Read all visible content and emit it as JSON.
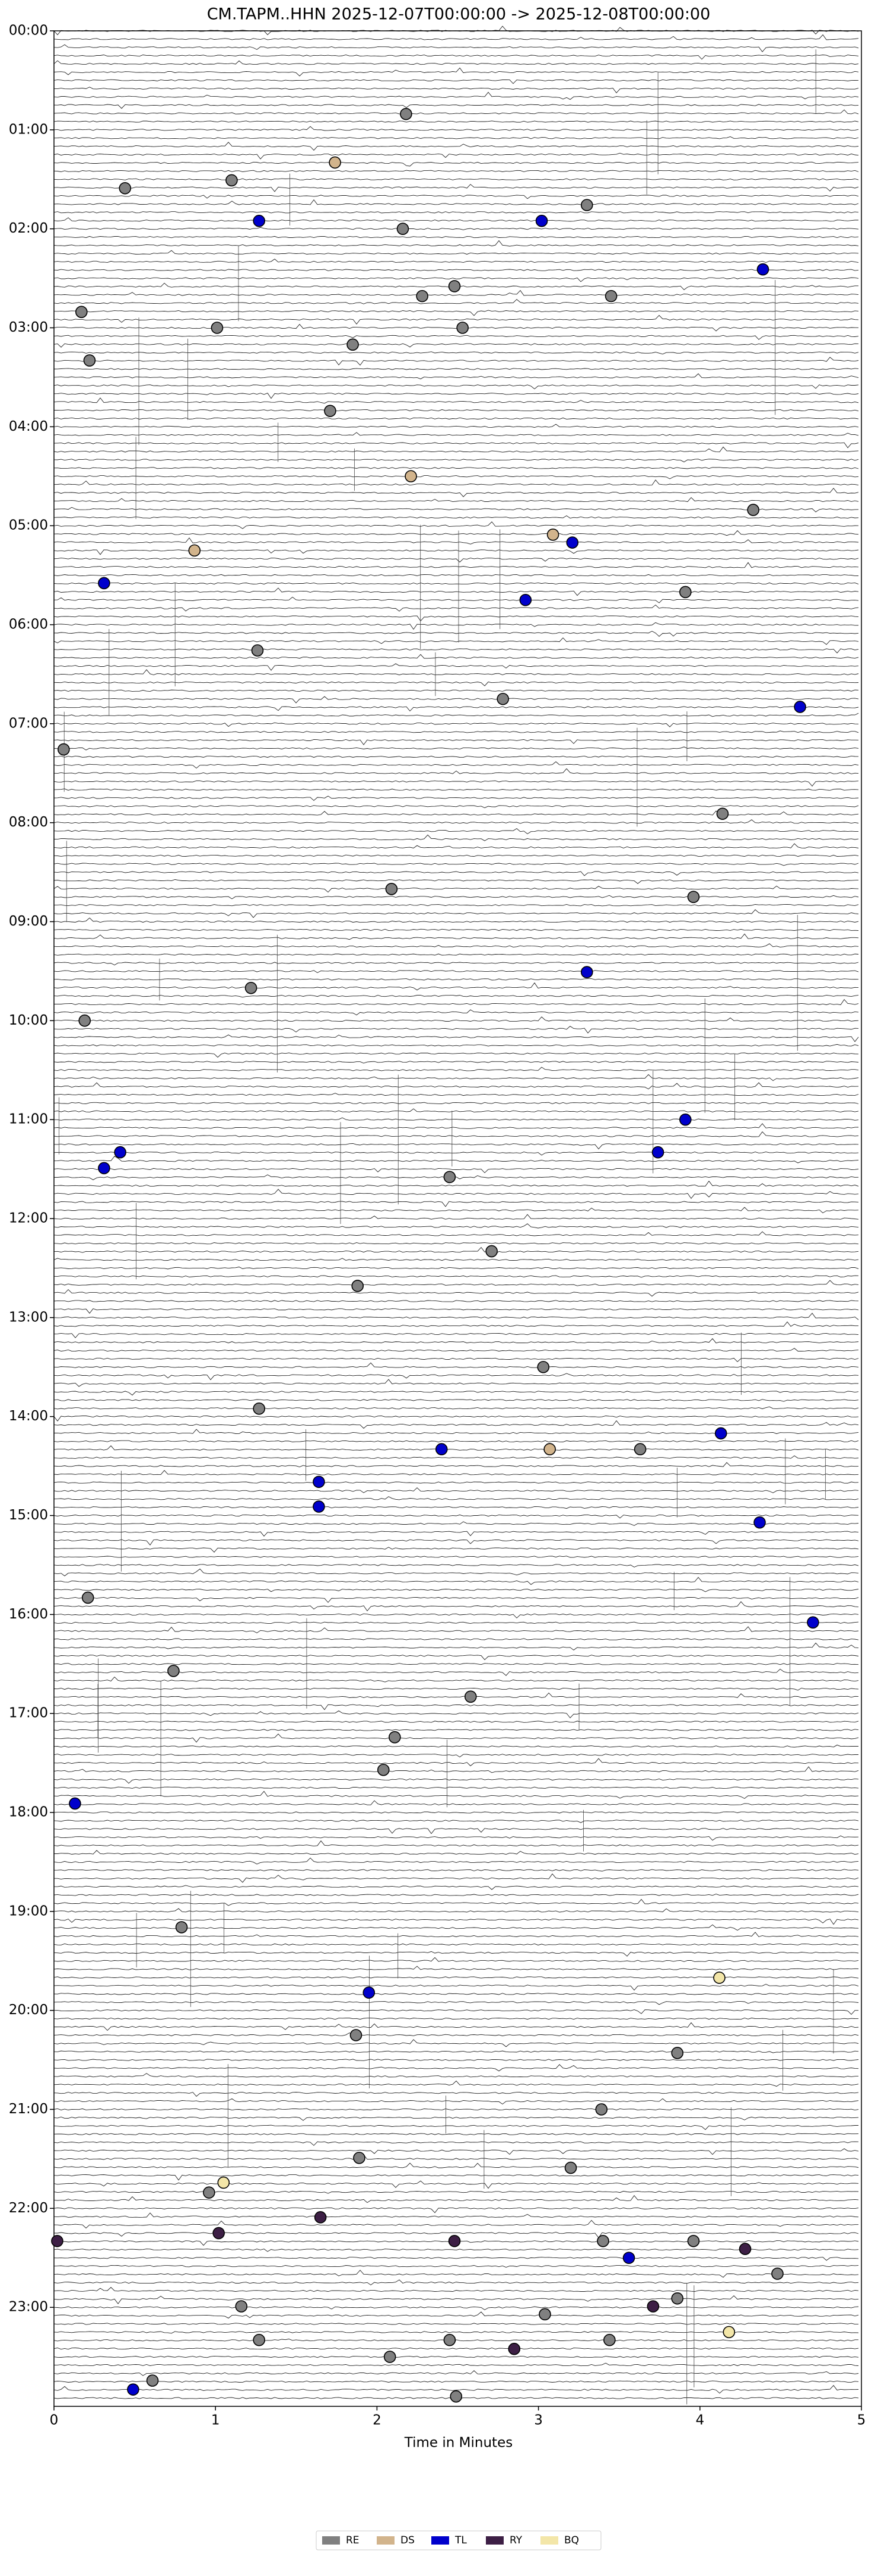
{
  "chart_data": {
    "type": "scatter",
    "title": "CM.TAPM..HHN  2025-12-07T00:00:00 -> 2025-12-08T00:00:00",
    "xlabel": "Time in Minutes",
    "xlim": [
      0,
      5
    ],
    "xticks": [
      0,
      1,
      2,
      3,
      4,
      5
    ],
    "ylim": [
      0,
      24
    ],
    "yticks": [
      {
        "value": 0,
        "label": "00:00"
      },
      {
        "value": 1,
        "label": "01:00"
      },
      {
        "value": 2,
        "label": "02:00"
      },
      {
        "value": 3,
        "label": "03:00"
      },
      {
        "value": 4,
        "label": "04:00"
      },
      {
        "value": 5,
        "label": "05:00"
      },
      {
        "value": 6,
        "label": "06:00"
      },
      {
        "value": 7,
        "label": "07:00"
      },
      {
        "value": 8,
        "label": "08:00"
      },
      {
        "value": 9,
        "label": "09:00"
      },
      {
        "value": 10,
        "label": "10:00"
      },
      {
        "value": 11,
        "label": "11:00"
      },
      {
        "value": 12,
        "label": "12:00"
      },
      {
        "value": 13,
        "label": "13:00"
      },
      {
        "value": 14,
        "label": "14:00"
      },
      {
        "value": 15,
        "label": "15:00"
      },
      {
        "value": 16,
        "label": "16:00"
      },
      {
        "value": 17,
        "label": "17:00"
      },
      {
        "value": 18,
        "label": "18:00"
      },
      {
        "value": 19,
        "label": "19:00"
      },
      {
        "value": 20,
        "label": "20:00"
      },
      {
        "value": 21,
        "label": "21:00"
      },
      {
        "value": 22,
        "label": "22:00"
      },
      {
        "value": 23,
        "label": "23:00"
      }
    ],
    "series": [
      {
        "name": "RE",
        "color": "#808080",
        "x": [
          2.18,
          0.44,
          1.1,
          3.3,
          2.16,
          0.17,
          2.48,
          2.28,
          3.45,
          1.01,
          2.53,
          0.22,
          1.85,
          1.71,
          4.33,
          3.91,
          1.26,
          2.78,
          0.06,
          4.14,
          3.96,
          1.22,
          0.19,
          2.09,
          2.45,
          2.71,
          1.88,
          3.03,
          1.27,
          3.63,
          0.21,
          0.74,
          2.58,
          2.11,
          2.04,
          0.79,
          1.87,
          3.86,
          3.39,
          1.89,
          3.2,
          0.96,
          3.4,
          3.96,
          4.48,
          3.86,
          1.16,
          3.04,
          1.27,
          2.45,
          3.44,
          2.08,
          0.61,
          2.49
        ],
        "y": [
          0.84,
          1.59,
          1.51,
          1.76,
          2.0,
          2.84,
          2.58,
          2.68,
          2.68,
          3.0,
          3.0,
          3.33,
          3.17,
          3.84,
          4.84,
          5.67,
          6.26,
          6.75,
          7.26,
          7.91,
          8.75,
          9.67,
          10.0,
          8.67,
          11.58,
          12.33,
          12.68,
          13.5,
          13.92,
          14.33,
          15.83,
          16.57,
          16.83,
          17.24,
          17.57,
          19.16,
          20.25,
          20.43,
          21.0,
          21.49,
          21.59,
          21.84,
          22.33,
          22.33,
          22.66,
          22.91,
          22.99,
          23.07,
          23.33,
          23.33,
          23.33,
          23.5,
          23.74,
          23.9
        ]
      },
      {
        "name": "DS",
        "color": "#d2b48c",
        "x": [
          1.74,
          0.87,
          3.09,
          3.07,
          2.21
        ],
        "y": [
          1.33,
          5.25,
          5.09,
          14.33,
          4.5
        ]
      },
      {
        "name": "TL",
        "color": "#0000cc",
        "x": [
          1.27,
          3.02,
          4.39,
          3.21,
          0.31,
          2.92,
          4.62,
          3.3,
          3.91,
          0.41,
          3.74,
          0.31,
          2.4,
          4.13,
          1.64,
          1.64,
          4.37,
          4.7,
          0.13,
          1.95,
          3.56,
          0.49
        ],
        "y": [
          1.92,
          1.92,
          2.41,
          5.17,
          5.58,
          5.75,
          6.83,
          9.51,
          11.0,
          11.33,
          11.33,
          11.49,
          14.33,
          14.17,
          14.66,
          14.91,
          15.07,
          16.08,
          17.91,
          19.82,
          22.5,
          23.83
        ]
      },
      {
        "name": "RY",
        "color": "#3d1f45",
        "x": [
          0.02,
          1.02,
          2.48,
          2.85,
          3.71,
          4.28,
          1.65
        ],
        "y": [
          22.33,
          22.25,
          22.33,
          23.42,
          22.99,
          22.41,
          22.09
        ]
      },
      {
        "name": "BQ",
        "color": "#f3e6a8",
        "x": [
          4.12,
          1.05,
          4.18
        ],
        "y": [
          19.67,
          21.74,
          23.25
        ]
      }
    ]
  }
}
